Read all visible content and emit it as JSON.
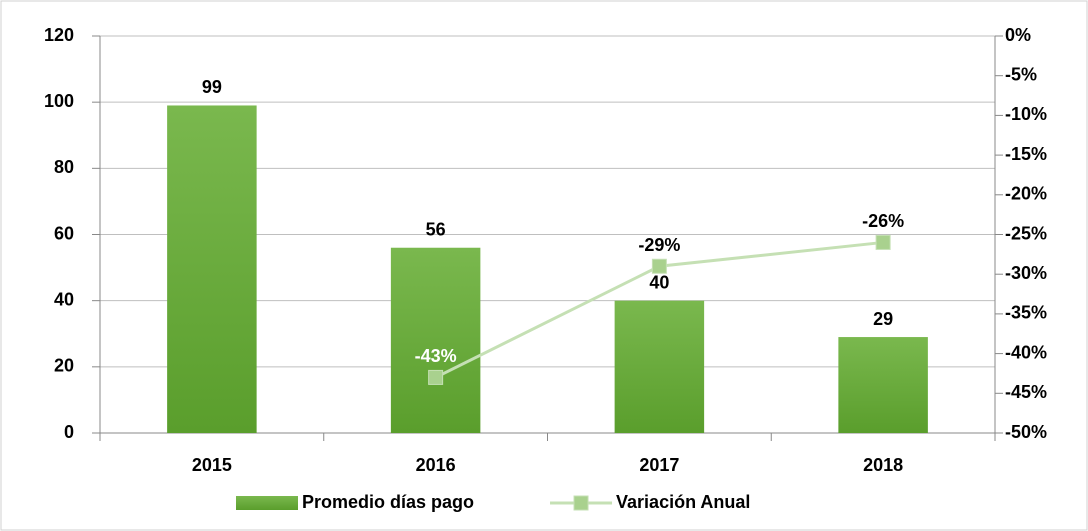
{
  "chart_data": {
    "type": "bar+line",
    "categories": [
      "2015",
      "2016",
      "2017",
      "2018"
    ],
    "series": [
      {
        "name": "Promedio días pago",
        "type": "bar",
        "color": "#6aaa3c",
        "values": [
          99,
          56,
          40,
          29
        ]
      },
      {
        "name": "Variación Anual",
        "type": "line",
        "axis": "y2",
        "color": "#c5e0b4",
        "marker_color": "#a9d18e",
        "values": [
          null,
          -43,
          -29,
          -26
        ],
        "value_labels": [
          null,
          "-43%",
          "-29%",
          "-26%"
        ]
      }
    ],
    "ylim": [
      0,
      120
    ],
    "yticks": [
      0,
      20,
      40,
      60,
      80,
      100,
      120
    ],
    "y2lim": [
      -50,
      0
    ],
    "y2ticks": [
      {
        "value": -50,
        "label": "-50%"
      },
      {
        "value": -45,
        "label": "-45%"
      },
      {
        "value": -40,
        "label": "-40%"
      },
      {
        "value": -35,
        "label": "-35%"
      },
      {
        "value": -30,
        "label": "-30%"
      },
      {
        "value": -25,
        "label": "-25%"
      },
      {
        "value": -20,
        "label": "-20%"
      },
      {
        "value": -15,
        "label": "-15%"
      },
      {
        "value": -10,
        "label": "-10%"
      },
      {
        "value": -5,
        "label": "-5%"
      },
      {
        "value": 0,
        "label": "0%"
      }
    ],
    "grid": true,
    "legend": "bottom"
  }
}
